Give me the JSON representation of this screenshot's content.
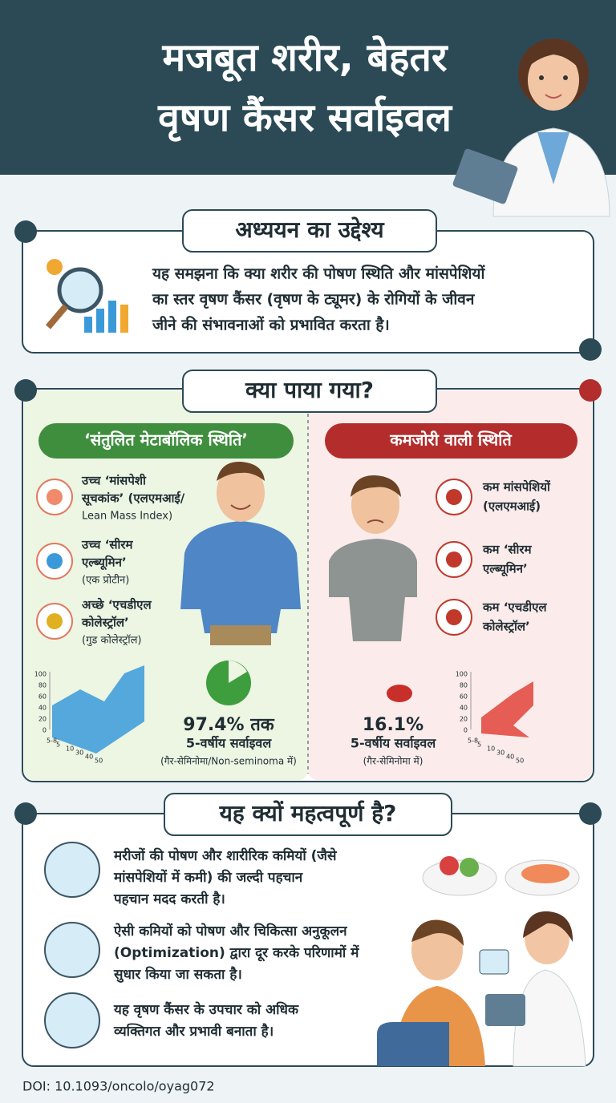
{
  "header": {
    "title_lines": [
      "मजबूत शरीर, बेहतर",
      "वृषण कैंसर सर्वाइवल"
    ]
  },
  "objective": {
    "title": "अध्ययन का उद्देश्य",
    "text_lines": [
      "यह समझना कि क्या शरीर की पोषण स्थिति और मांसपेशियों",
      "का स्तर वृषण कैंसर (वृषण के ट्यूमर) के रोगियों के जीवन",
      "जीने की संभावनाओं को प्रभावित करता है।"
    ]
  },
  "findings": {
    "title": "क्या पाया गया?",
    "balanced": {
      "heading": "‘संतुलित मेटाबॉलिक स्थिति’",
      "items": [
        {
          "lines": [
            "उच्च ‘मांसपेशी",
            "सूचकांक’ (एलएमआई/",
            "Lean Mass Index)"
          ]
        },
        {
          "lines": [
            "उच्च ‘सीरम",
            "एल्ब्यूमिन’",
            "(एक प्रोटीन)"
          ]
        },
        {
          "lines": [
            "अच्छे ‘एचडीएल",
            "कोलेस्ट्रॉल’",
            "(गुड कोलेस्ट्रॉल)"
          ]
        }
      ],
      "stat": {
        "value": "97.4% तक",
        "label": "5-वर्षीय सर्वाइवल",
        "note": "(गैर-सेमिनोमा/Non-seminoma में)"
      }
    },
    "weak": {
      "heading": "कमजोरी वाली स्थिति",
      "items": [
        {
          "lines": [
            "कम मांसपेशियों",
            "(एलएमआई)"
          ]
        },
        {
          "lines": [
            "कम ‘सीरम",
            "एल्ब्यूमिन’"
          ]
        },
        {
          "lines": [
            "कम ‘एचडीएल",
            "कोलेस्ट्रॉल’"
          ]
        }
      ],
      "stat": {
        "value": "16.1%",
        "label": "5-वर्षीय सर्वाइवल",
        "note": "(गैर-सेमिनोमा में)"
      }
    },
    "chart_axis": {
      "yticks": [
        "100",
        "80",
        "60",
        "40",
        "20",
        "0"
      ],
      "xticks": [
        "5-8",
        "5",
        "10",
        "30",
        "40",
        "50"
      ]
    }
  },
  "importance": {
    "title": "यह क्यों महत्वपूर्ण है?",
    "points": [
      {
        "lines": [
          "मरीजों की पोषण और शारीरिक कमियों (जैसे",
          "मांसपेशियों में कमी) की जल्दी पहचान",
          "पहचान मदद करती है।"
        ]
      },
      {
        "lines": [
          "ऐसी कमियों को पोषण और चिकित्सा अनुकूलन",
          "(Optimization) द्वारा दूर करके परिणामों में",
          "सुधार किया जा सकता है।"
        ]
      },
      {
        "lines": [
          "यह वृषण कैंसर के उपचार को अधिक",
          "व्यक्तिगत और प्रभावी बनाता है।"
        ]
      }
    ]
  },
  "doi": "DOI: 10.1093/oncolo/oyag072"
}
